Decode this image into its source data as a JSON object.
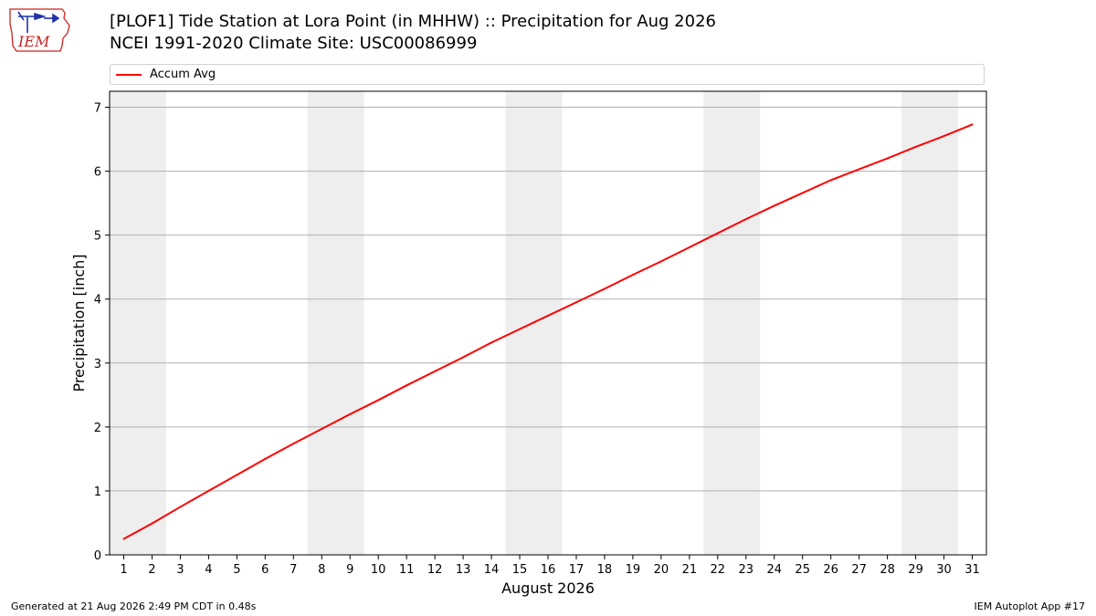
{
  "header": {
    "title_line1": "[PLOF1] Tide Station at Lora Point (in MHHW) :: Precipitation for Aug 2026",
    "title_line2": "NCEI 1991-2020 Climate Site: USC00086999",
    "logo_text": "IEM"
  },
  "footer": {
    "generated": "Generated at 21 Aug 2026 2:49 PM CDT in 0.48s",
    "app": "IEM Autoplot App #17"
  },
  "colors": {
    "series": "#ff0000",
    "weekend_band": "#eeeeee",
    "grid": "#b0b0b0",
    "logo_red": "#cc2222",
    "logo_blue": "#2233aa"
  },
  "chart_data": {
    "type": "line",
    "xlabel": "August 2026",
    "ylabel": "Precipitation [inch]",
    "x": [
      1,
      2,
      3,
      4,
      5,
      6,
      7,
      8,
      9,
      10,
      11,
      12,
      13,
      14,
      15,
      16,
      17,
      18,
      19,
      20,
      21,
      22,
      23,
      24,
      25,
      26,
      27,
      28,
      29,
      30,
      31
    ],
    "xlim": [
      0.5,
      31.5
    ],
    "ylim": [
      0,
      7.25
    ],
    "yticks": [
      0,
      1,
      2,
      3,
      4,
      5,
      6,
      7
    ],
    "grid": true,
    "legend_position": "top",
    "weekend_bands": [
      [
        0.5,
        2.5
      ],
      [
        7.5,
        9.5
      ],
      [
        14.5,
        16.5
      ],
      [
        21.5,
        23.5
      ],
      [
        28.5,
        30.5
      ]
    ],
    "series": [
      {
        "name": "Accum Avg",
        "values": [
          0.25,
          0.49,
          0.75,
          1.0,
          1.25,
          1.5,
          1.74,
          1.97,
          2.2,
          2.42,
          2.65,
          2.87,
          3.09,
          3.32,
          3.53,
          3.74,
          3.95,
          4.16,
          4.38,
          4.59,
          4.81,
          5.03,
          5.25,
          5.46,
          5.66,
          5.86,
          6.03,
          6.2,
          6.38,
          6.55,
          6.73
        ]
      }
    ]
  }
}
